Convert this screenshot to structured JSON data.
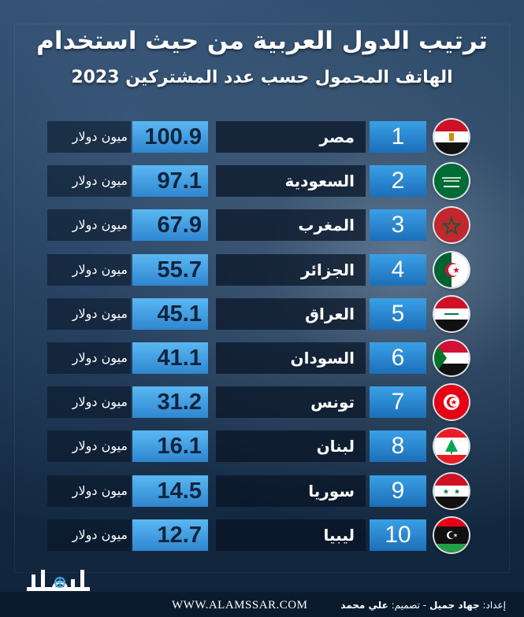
{
  "title": "ترتيب الدول العربية من حيث استخدام",
  "subtitle": "الهاتف المحمول حسب عدد المشتركين 2023",
  "unit_label": "ميون دولار",
  "chart_data": {
    "type": "table",
    "title": "ترتيب الدول العربية من حيث استخدام",
    "subtitle": "الهاتف المحمول حسب عدد المشتركين 2023",
    "columns": [
      "rank",
      "country",
      "value",
      "unit"
    ],
    "rows": [
      {
        "rank": "1",
        "country": "مصر",
        "value": 100.9,
        "unit": "ميون دولار",
        "flag": "egypt-flag-icon"
      },
      {
        "rank": "2",
        "country": "السعودية",
        "value": 97.1,
        "unit": "ميون دولار",
        "flag": "saudi-flag-icon"
      },
      {
        "rank": "3",
        "country": "المغرب",
        "value": 67.9,
        "unit": "ميون دولار",
        "flag": "morocco-flag-icon"
      },
      {
        "rank": "4",
        "country": "الجزائر",
        "value": 55.7,
        "unit": "ميون دولار",
        "flag": "algeria-flag-icon"
      },
      {
        "rank": "5",
        "country": "العراق",
        "value": 45.1,
        "unit": "ميون دولار",
        "flag": "iraq-flag-icon"
      },
      {
        "rank": "6",
        "country": "السودان",
        "value": 41.1,
        "unit": "ميون دولار",
        "flag": "sudan-flag-icon"
      },
      {
        "rank": "7",
        "country": "تونس",
        "value": 31.2,
        "unit": "ميون دولار",
        "flag": "tunisia-flag-icon"
      },
      {
        "rank": "8",
        "country": "لبنان",
        "value": 16.1,
        "unit": "ميون دولار",
        "flag": "lebanon-flag-icon"
      },
      {
        "rank": "9",
        "country": "سوريا",
        "value": 14.5,
        "unit": "ميون دولار",
        "flag": "syria-flag-icon"
      },
      {
        "rank": "10",
        "country": "ليبيا",
        "value": 12.7,
        "unit": "ميون دولار",
        "flag": "libya-flag-icon"
      }
    ]
  },
  "footer": {
    "website": "WWW.ALAMSSAR.COM",
    "prep_label": "إعداد:",
    "prep_name": "جهاد جميل",
    "sep": "-",
    "design_label": "تصميم:",
    "design_name": "علي محمد",
    "logo_text": "الأمصار"
  },
  "colors": {
    "rank_box": "#2a86cf",
    "value_box": "#4aa8e8",
    "row_dark": "#0c1c30"
  }
}
